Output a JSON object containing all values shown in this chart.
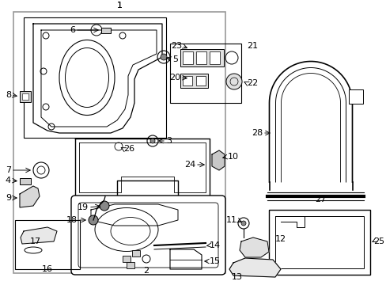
{
  "bg_color": "#ffffff",
  "line_color": "#000000",
  "gray_color": "#999999",
  "fig_w": 4.89,
  "fig_h": 3.6,
  "dpi": 100
}
